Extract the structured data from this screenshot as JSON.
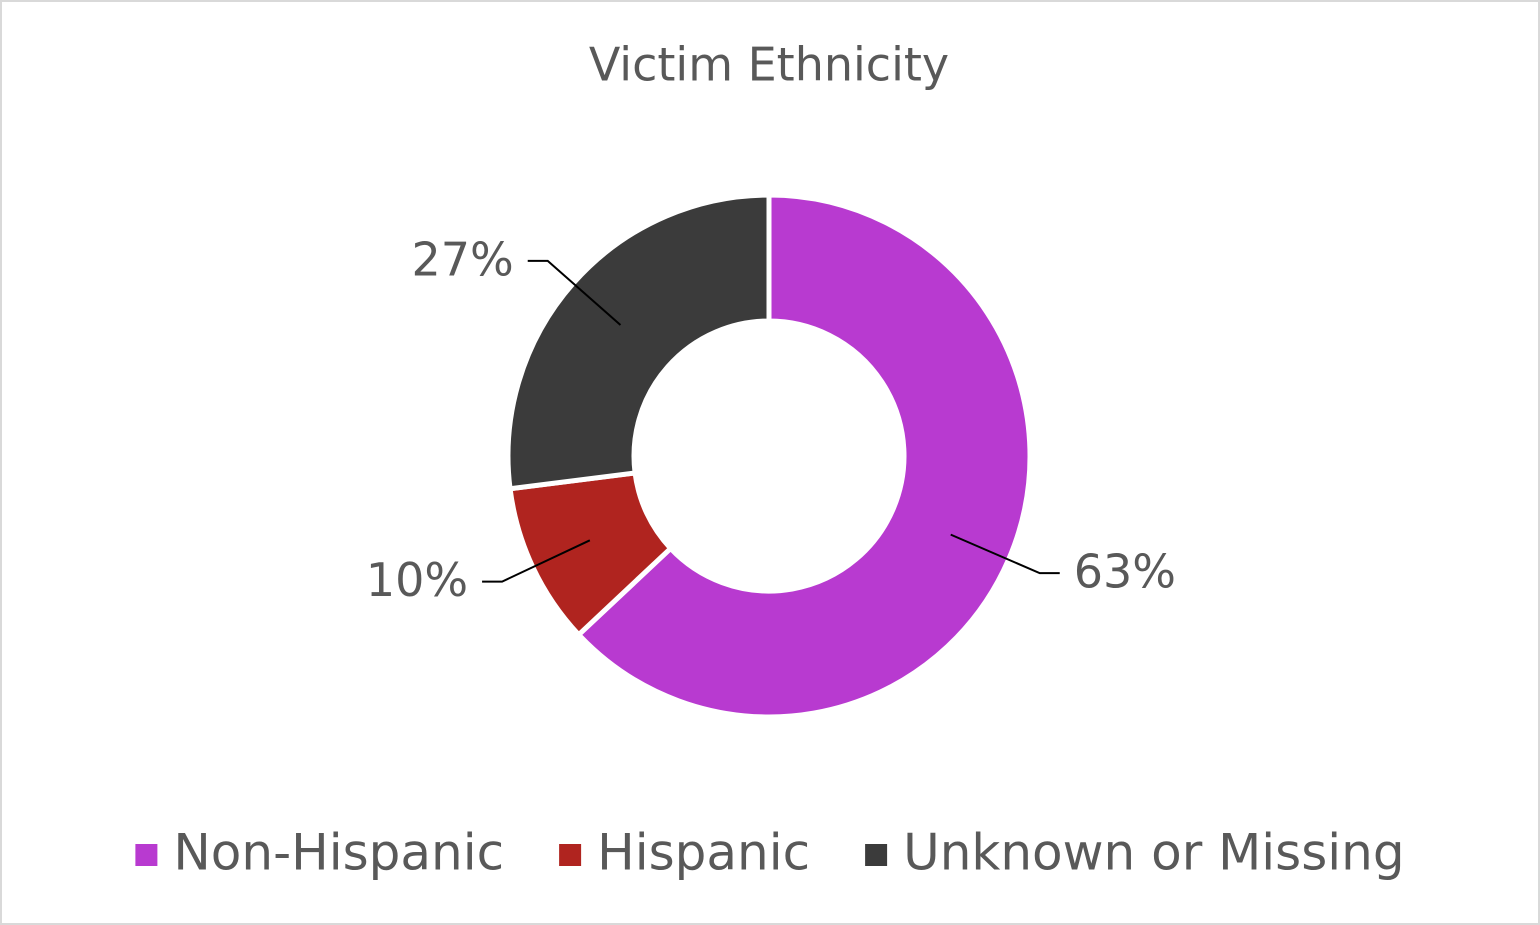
{
  "chart_data": {
    "type": "pie",
    "title": "Victim Ethnicity",
    "categories": [
      "Non-Hispanic",
      "Hispanic",
      "Unknown or Missing"
    ],
    "values": [
      63,
      10,
      27
    ],
    "value_labels": [
      "63%",
      "10%",
      "27%"
    ],
    "colors": [
      "#b83ad0",
      "#b0241f",
      "#3b3b3b"
    ]
  }
}
